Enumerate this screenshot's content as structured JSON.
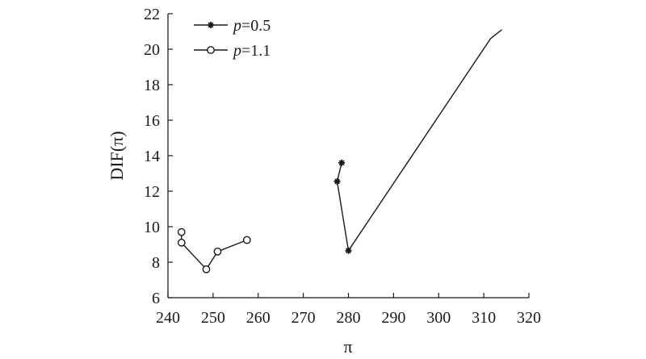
{
  "chart_data": {
    "type": "line",
    "title": "",
    "xlabel": "π",
    "ylabel": "DIF(π)",
    "xlim": [
      240,
      320
    ],
    "ylim": [
      6,
      22
    ],
    "x_ticks": [
      240,
      250,
      260,
      270,
      280,
      290,
      300,
      310,
      320
    ],
    "y_ticks": [
      6,
      8,
      10,
      12,
      14,
      16,
      18,
      20,
      22
    ],
    "grid": false,
    "legend_position": "top-left",
    "series": [
      {
        "name_prefix": "p",
        "name_suffix": "=0.5",
        "marker": "asterisk",
        "x": [
          278.5,
          277.5,
          280.0,
          311.5,
          314.0
        ],
        "y": [
          13.6,
          12.55,
          8.65,
          20.6,
          21.1
        ],
        "marked": [
          true,
          true,
          true,
          false,
          false
        ]
      },
      {
        "name_prefix": "p",
        "name_suffix": "=1.1",
        "marker": "circle",
        "x": [
          243.0,
          243.0,
          248.5,
          251.0,
          257.5
        ],
        "y": [
          9.7,
          9.1,
          7.6,
          8.6,
          9.25
        ],
        "marked": [
          true,
          true,
          true,
          true,
          true
        ]
      }
    ]
  }
}
